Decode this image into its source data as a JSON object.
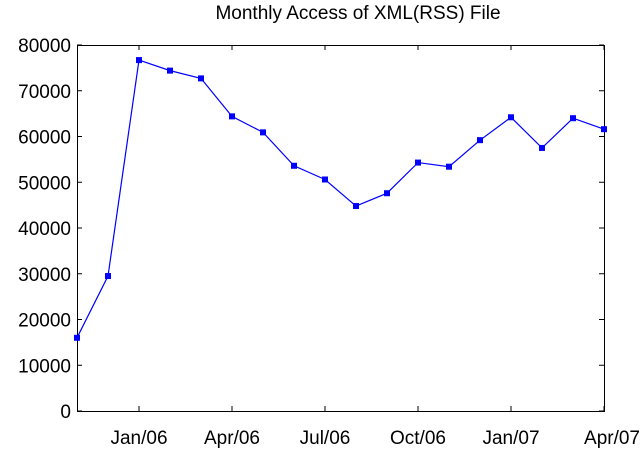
{
  "chart_data": {
    "type": "line",
    "title": "Monthly Access of XML(RSS) File",
    "xlabel": "",
    "ylabel": "",
    "x": [
      "Nov/05",
      "Dec/05",
      "Jan/06",
      "Feb/06",
      "Mar/06",
      "Apr/06",
      "May/06",
      "Jun/06",
      "Jul/06",
      "Aug/06",
      "Sep/06",
      "Oct/06",
      "Nov/06",
      "Dec/06",
      "Jan/07",
      "Feb/07",
      "Mar/07",
      "Apr/07"
    ],
    "series": [
      {
        "name": "",
        "color": "#0000ff",
        "marker": "square",
        "values": [
          16000,
          29500,
          76700,
          74400,
          72700,
          64400,
          60900,
          53600,
          50600,
          44800,
          47600,
          54300,
          53400,
          59200,
          64200,
          57500,
          64000,
          61600
        ]
      }
    ],
    "xlim": [
      "Nov/05",
      "Apr/07"
    ],
    "ylim": [
      0,
      80000
    ],
    "xticks": [
      "Jan/06",
      "Apr/06",
      "Jul/06",
      "Oct/06",
      "Jan/07",
      "Apr/07"
    ],
    "yticks": [
      "0",
      "10000",
      "20000",
      "30000",
      "40000",
      "50000",
      "60000",
      "70000",
      "80000"
    ],
    "grid": false,
    "legend": "none",
    "colors": {
      "line": "#0000ff",
      "axes": "#000000",
      "background": "#ffffff"
    }
  }
}
